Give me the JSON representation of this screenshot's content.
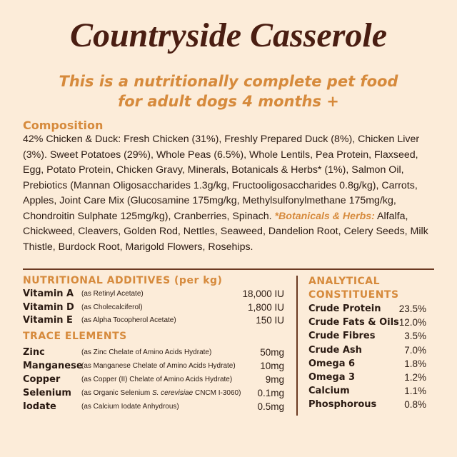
{
  "header": {
    "title": "Countryside Casserole",
    "subtitle": [
      "This is a nutritionally complete pet food",
      "for adult dogs 4 months +"
    ]
  },
  "composition": {
    "heading": "Composition",
    "text": "42% Chicken & Duck: Fresh Chicken (31%), Freshly Prepared Duck (8%), Chicken Liver (3%). Sweet Potatoes (29%), Whole Peas (6.5%), Whole Lentils, Pea Protein, Flaxseed, Egg, Potato Protein, Chicken Gravy, Minerals, Botanicals & Herbs* (1%), Salmon Oil, Prebiotics (Mannan Oligosaccharides 1.3g/kg, Fructooligosaccharides 0.8g/kg), Carrots, Apples, Joint Care Mix (Glucosamine 175mg/kg, Methylsulfonylmethane 175mg/kg, Chondroitin Sulphate 125mg/kg), Cranberries, Spinach.",
    "botanicals_label": "*Botanicals & Herbs:",
    "botanicals_text": "Alfalfa, Chickweed, Cleavers, Golden Rod, Nettles, Seaweed, Dandelion Root, Celery Seeds, Milk Thistle, Burdock Root, Marigold Flowers, Rosehips."
  },
  "additives": {
    "heading": "NUTRITIONAL ADDITIVES (per kg)",
    "rows": [
      [
        "Vitamin A",
        "(as Retinyl Acetate)",
        "18,000 IU"
      ],
      [
        "Vitamin D",
        "(as Cholecalciferol)",
        "1,800 IU"
      ],
      [
        "Vitamin E",
        "(as Alpha Tocopherol Acetate)",
        "150 IU"
      ]
    ]
  },
  "trace": {
    "heading": "TRACE ELEMENTS",
    "rows": [
      [
        "Zinc",
        "(as Zinc Chelate of Amino Acids Hydrate)",
        "50mg"
      ],
      [
        "Manganese",
        "(as Manganese Chelate of Amino Acids Hydrate)",
        "10mg"
      ],
      [
        "Copper",
        "(as Copper (II) Chelate of Amino Acids Hydrate)",
        "9mg"
      ],
      [
        "Selenium",
        "(as Organic Selenium ",
        "S. cerevisiae",
        " CNCM I-3060)",
        "0.1mg"
      ],
      [
        "Iodate",
        "(as Calcium Iodate Anhydrous)",
        "0.5mg"
      ]
    ]
  },
  "analytical": {
    "heading": [
      "ANALYTICAL",
      "CONSTITUENTS"
    ],
    "rows": [
      [
        "Crude Protein",
        "23.5%"
      ],
      [
        "Crude Fats & Oils",
        "12.0%"
      ],
      [
        "Crude Fibres",
        "3.5%"
      ],
      [
        "Crude Ash",
        "7.0%"
      ],
      [
        "Omega 6",
        "1.8%"
      ],
      [
        "Omega 3",
        "1.2%"
      ],
      [
        "Calcium",
        "1.1%"
      ],
      [
        "Phosphorous",
        "0.8%"
      ]
    ]
  }
}
